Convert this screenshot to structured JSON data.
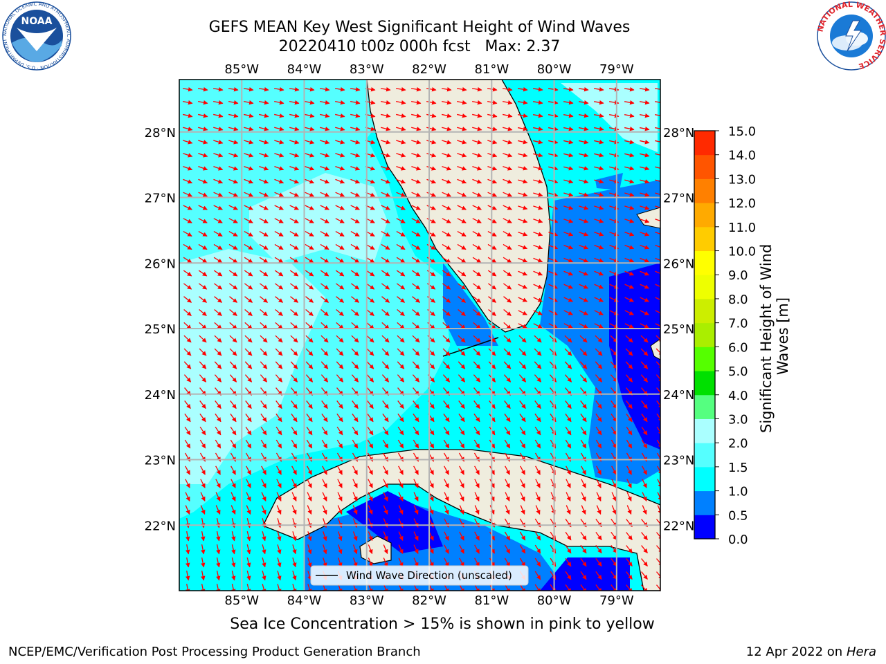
{
  "header": {
    "title_line1": "GEFS MEAN Key West Significant Height of Wind Waves",
    "title_line2": "20220410 t00z 000h fcst   Max: 2.37"
  },
  "logos": {
    "noaa_text": "NOAA",
    "noaa_ring_text": "NATIONAL OCEANIC AND ATMOSPHERIC ADMINISTRATION · U.S. DEPARTMENT OF COMMERCE ·",
    "nws_ring_text": "NATIONAL WEATHER SERVICE",
    "noaa_color": "#1a4f9c",
    "nws_red": "#e0242b"
  },
  "map": {
    "lon_ticks": [
      "85°W",
      "84°W",
      "83°W",
      "82°W",
      "81°W",
      "80°W",
      "79°W"
    ],
    "lon_values": [
      -85,
      -84,
      -83,
      -82,
      -81,
      -80,
      -79
    ],
    "lat_ticks": [
      "28°N",
      "27°N",
      "26°N",
      "25°N",
      "24°N",
      "23°N",
      "22°N"
    ],
    "lat_values": [
      28,
      27,
      26,
      25,
      24,
      23,
      22
    ],
    "extent": {
      "lon_min": -86,
      "lon_max": -78.3,
      "lat_min": 21,
      "lat_max": 28.8
    },
    "legend_label": "Wind Wave Direction (unscaled)",
    "land_color": "#efedde",
    "arrow_color": "#ff0000",
    "grid_color": "#b4b4b4"
  },
  "colorbar": {
    "label": "Significant Height of Wind Waves [m]",
    "tick_labels": [
      "15.0",
      "14.0",
      "13.0",
      "12.0",
      "11.0",
      "10.0",
      "9.0",
      "8.0",
      "7.0",
      "6.0",
      "5.0",
      "4.0",
      "3.0",
      "2.0",
      "1.5",
      "1.0",
      "0.5",
      "0.0"
    ],
    "levels": [
      0,
      0.5,
      1.0,
      1.5,
      2.0,
      3.0,
      4.0,
      5.0,
      6.0,
      7.0,
      8.0,
      9.0,
      10.0,
      11.0,
      12.0,
      13.0,
      14.0,
      15.0
    ],
    "colors": [
      "#0000ff",
      "#0080ff",
      "#00ffff",
      "#55ffff",
      "#aaffff",
      "#55ff80",
      "#00e000",
      "#55ff00",
      "#aaee00",
      "#ccee00",
      "#eeff00",
      "#ffff00",
      "#ffcc00",
      "#ffaa00",
      "#ff8000",
      "#ff5500",
      "#ff2a00",
      "#ff0000"
    ]
  },
  "notes": {
    "sea_ice": "Sea Ice Concentration > 15% is shown in pink to yellow",
    "producer": "NCEP/EMC/Verification Post Processing Product Generation Branch",
    "date_prefix": "12 Apr 2022 on ",
    "machine": "Hera"
  }
}
